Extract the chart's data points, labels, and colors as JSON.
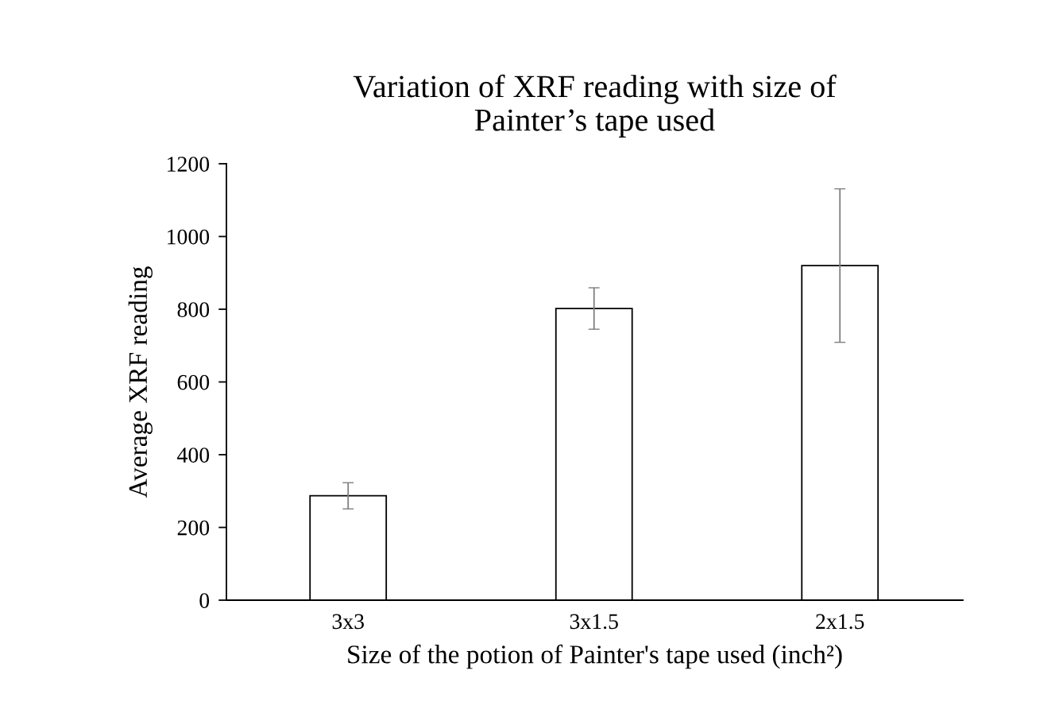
{
  "chart_data": {
    "type": "bar",
    "title": "Variation of XRF reading with size of\nPainter’s tape used",
    "xlabel": "Size of the potion of Painter's tape used (inch²)",
    "ylabel": "Average XRF reading",
    "categories": [
      "3x3",
      "3x1.5",
      "2x1.5"
    ],
    "values": [
      287,
      802,
      920
    ],
    "errors": [
      36,
      57,
      211
    ],
    "color": "#ffffff",
    "ylim": [
      0,
      1200
    ],
    "yticks": [
      0,
      200,
      400,
      600,
      800,
      1000,
      1200
    ],
    "grid": false,
    "legend": false
  }
}
